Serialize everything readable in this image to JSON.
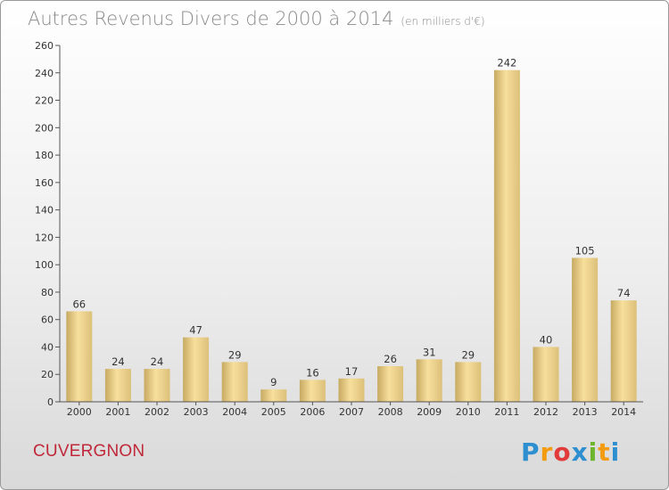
{
  "header": {
    "title": "Autres Revenus Divers de 2000 à 2014",
    "unit": "(en milliers d'€)"
  },
  "footer": {
    "commune": "CUVERGNON",
    "logo_letters": [
      "P",
      "r",
      "o",
      "x",
      "i",
      "t",
      "i"
    ],
    "logo_colors": [
      "#2e8fd0",
      "#f39c12",
      "#e23b3b",
      "#2e8fd0",
      "#6cb52d",
      "#f39c12",
      "#2e8fd0"
    ]
  },
  "colors": {
    "bar_light": "#f7df9c",
    "bar_dark": "#c7aa62",
    "commune_text": "#c0283a"
  },
  "chart_data": {
    "type": "bar",
    "title": "Autres Revenus Divers de 2000 à 2014",
    "subtitle": "(en milliers d'€)",
    "xlabel": "",
    "ylabel": "",
    "categories": [
      "2000",
      "2001",
      "2002",
      "2003",
      "2004",
      "2005",
      "2006",
      "2007",
      "2008",
      "2009",
      "2010",
      "2011",
      "2012",
      "2013",
      "2014"
    ],
    "values": [
      66,
      24,
      24,
      47,
      29,
      9,
      16,
      17,
      26,
      31,
      29,
      242,
      40,
      105,
      74
    ],
    "ylim": [
      0,
      260
    ],
    "yticks": [
      0,
      20,
      40,
      60,
      80,
      100,
      120,
      140,
      160,
      180,
      200,
      220,
      240,
      260
    ],
    "grid": false,
    "data_labels": true
  }
}
